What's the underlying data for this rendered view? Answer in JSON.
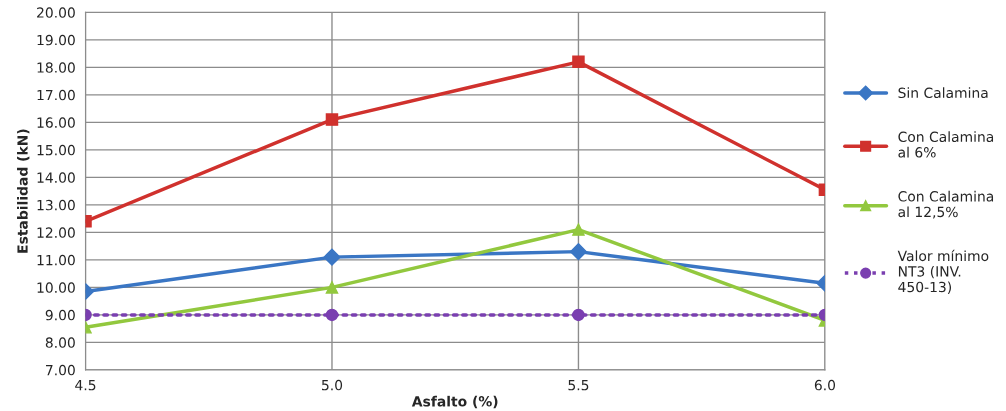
{
  "chart_data": {
    "type": "line",
    "xlabel": "Asfalto (%)",
    "ylabel": "Estabilidad (kN)",
    "x": [
      4.5,
      5.0,
      5.5,
      6.0
    ],
    "series": [
      {
        "name": "Sin Calamina",
        "color": "#3a76c4",
        "marker": "diamond",
        "line_style": "solid",
        "values": [
          9.85,
          11.1,
          11.3,
          10.15
        ]
      },
      {
        "name": "Con Calamina\nal 6%",
        "color": "#d0312d",
        "marker": "square",
        "line_style": "solid",
        "values": [
          12.4,
          16.1,
          18.2,
          13.55
        ]
      },
      {
        "name": "Con Calamina\nal 12,5%",
        "color": "#92c83e",
        "marker": "triangle",
        "line_style": "solid",
        "values": [
          8.55,
          10.0,
          12.1,
          8.8
        ]
      },
      {
        "name": "Valor mínimo\nNT3 (INV.\n450-13)",
        "color": "#7a3fb0",
        "marker": "circle",
        "line_style": "dotted",
        "values": [
          9.0,
          9.0,
          9.0,
          9.0
        ]
      }
    ],
    "xlim": [
      4.5,
      6.0
    ],
    "xticks": [
      4.5,
      {
        "value": 5.0,
        "label": "5.0"
      },
      5.5,
      {
        "value": 6.0,
        "label": "6.0"
      }
    ],
    "ylim": [
      7.0,
      20.0
    ],
    "yticks": [
      {
        "value": 7,
        "label": "7.00"
      },
      {
        "value": 8,
        "label": "8.00"
      },
      {
        "value": 9,
        "label": "9.00"
      },
      {
        "value": 10,
        "label": "10.00"
      },
      {
        "value": 11,
        "label": "11.00"
      },
      {
        "value": 12,
        "label": "12.00"
      },
      {
        "value": 13,
        "label": "13.00"
      },
      {
        "value": 14,
        "label": "14.00"
      },
      {
        "value": 15,
        "label": "15.00"
      },
      {
        "value": 16,
        "label": "16.00"
      },
      {
        "value": 17,
        "label": "17.00"
      },
      {
        "value": 18,
        "label": "18.00"
      },
      {
        "value": 19,
        "label": "19.00"
      },
      {
        "value": 20,
        "label": "20.00"
      }
    ],
    "grid": true,
    "legend": "right"
  }
}
